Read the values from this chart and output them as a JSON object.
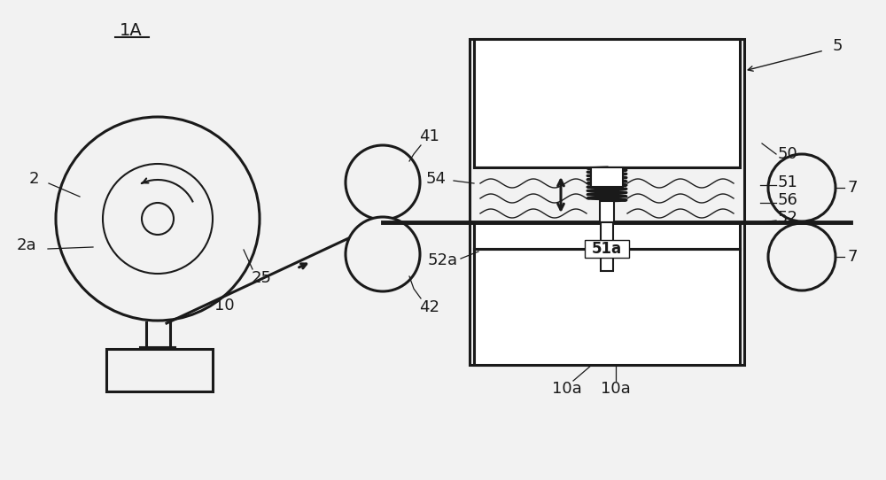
{
  "bg_color": "#f2f2f2",
  "line_color": "#1a1a1a",
  "label_1A": "1A",
  "label_2": "2",
  "label_2a": "2a",
  "label_25": "25",
  "label_10": "10",
  "label_41": "41",
  "label_42": "42",
  "label_5": "5",
  "label_50": "50",
  "label_51": "51",
  "label_51a": "51a",
  "label_52": "52",
  "label_52a": "52a",
  "label_54": "54",
  "label_56": "56",
  "label_7": "7",
  "label_10a": "10a"
}
